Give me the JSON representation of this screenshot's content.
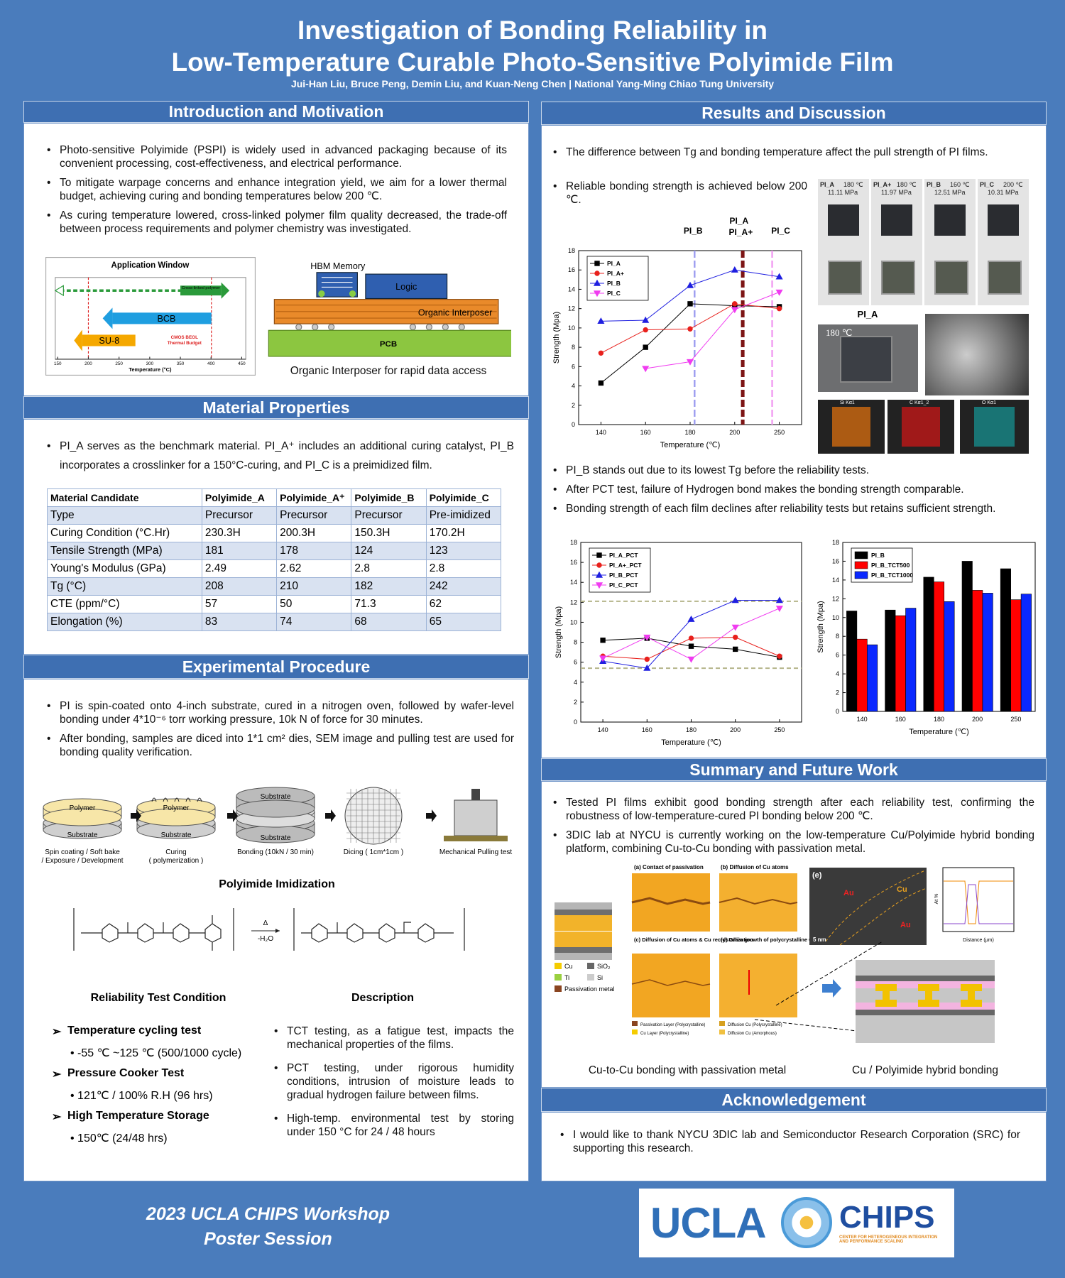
{
  "header": {
    "title_line1": "Investigation of Bonding Reliability in",
    "title_line2": "Low-Temperature Curable Photo-Sensitive Polyimide Film",
    "authors": "Jui-Han Liu, Bruce Peng, Demin Liu, and Kuan-Neng Chen | National Yang-Ming Chiao Tung University"
  },
  "introduction": {
    "heading": "Introduction and Motivation",
    "bullets": [
      "Photo-sensitive Polyimide (PSPI) is widely used in advanced packaging because of its convenient processing, cost-effectiveness, and electrical performance.",
      "To mitigate warpage concerns and enhance integration yield, we aim for a lower thermal budget, achieving curing and bonding temperatures below 200 ℃.",
      "As curing temperature lowered, cross-linked polymer film quality decreased, the trade-off between process requirements and polymer chemistry was investigated."
    ],
    "app_window": {
      "title": "Application Window",
      "cross_linked": "Cross-linked polymer",
      "bcb": "BCB",
      "su8": "SU-8",
      "cmos_line1": "CMOS BEOL",
      "cmos_line2": "Thermal Budget",
      "x_label": "Temperature (°C)",
      "xlim": [
        150,
        450
      ],
      "xticks": [
        150,
        200,
        250,
        300,
        350,
        400,
        450
      ]
    },
    "interposer": {
      "hbm": "HBM Memory",
      "logic": "Logic",
      "interposer": "Organic Interposer",
      "pcb": "PCB",
      "caption": "Organic Interposer for rapid data access"
    }
  },
  "materials": {
    "heading": "Material Properties",
    "bullet": "PI_A serves as the benchmark material. PI_A⁺ includes an additional curing catalyst, PI_B incorporates a crosslinker for a 150°C-curing, and PI_C is a preimidized film.",
    "table": {
      "header": [
        "Material Candidate",
        "Polyimide_A",
        "Polyimide_A⁺",
        "Polyimide_B",
        "Polyimide_C"
      ],
      "rows": [
        [
          "Type",
          "Precursor",
          "Precursor",
          "Precursor",
          "Pre-imidized"
        ],
        [
          "Curing Condition (°C.Hr)",
          "230.3H",
          "200.3H",
          "150.3H",
          "170.2H"
        ],
        [
          "Tensile Strength (MPa)",
          "181",
          "178",
          "124",
          "123"
        ],
        [
          "Young's Modulus (GPa)",
          "2.49",
          "2.62",
          "2.8",
          "2.8"
        ],
        [
          "Tg (°C)",
          "208",
          "210",
          "182",
          "242"
        ],
        [
          "CTE (ppm/°C)",
          "57",
          "50",
          "71.3",
          "62"
        ],
        [
          "Elongation (%)",
          "83",
          "74",
          "68",
          "65"
        ]
      ]
    }
  },
  "experimental": {
    "heading": "Experimental Procedure",
    "bullets": [
      "PI is spin-coated onto 4-inch substrate, cured in a nitrogen oven, followed by wafer-level bonding under 4*10⁻⁶ torr working pressure, 10k N of force for 30 minutes.",
      "After bonding, samples are diced into 1*1 cm² dies, SEM image and pulling test are used for bonding quality verification."
    ],
    "layers": {
      "polymer": "Polymer",
      "substrate": "Substrate"
    },
    "steps": [
      [
        "Spin coating / Soft bake",
        "/ Exposure / Development"
      ],
      [
        "Curing",
        "( polymerization )"
      ],
      [
        "Bonding (10kN / 30 min)"
      ],
      [
        "Dicing ( 1cm*1cm )"
      ],
      [
        "Mechanical Pulling test"
      ]
    ],
    "imidization": {
      "title": "Polyimide Imidization",
      "reagent_top": "Δ",
      "reagent_bottom": "-H₂O"
    },
    "reliability": {
      "col1": "Reliability Test Condition",
      "col2": "Description",
      "tests": [
        {
          "name": "Temperature cycling test",
          "condition": "-55 ℃ ~125 ℃  (500/1000 cycle)",
          "description": "TCT testing, as a fatigue test, impacts the mechanical properties of the films."
        },
        {
          "name": "Pressure Cooker Test",
          "condition": "121℃ / 100% R.H  (96 hrs)",
          "description": "PCT testing, under rigorous humidity conditions, intrusion of moisture leads to gradual hydrogen failure between films."
        },
        {
          "name": "High Temperature Storage",
          "condition": "150℃  (24/48 hrs)",
          "description": "High-temp. environmental test by storing under 150 °C for 24 / 48 hours"
        }
      ]
    }
  },
  "results": {
    "heading": "Results and Discussion",
    "bullets_top": [
      "The difference between Tg and bonding temperature affect the pull strength of PI films.",
      "Reliable bonding strength is achieved below 200 ℃."
    ],
    "photos": [
      {
        "label": "PI_A",
        "temp": "180 ℃",
        "strength": "11.11 MPa"
      },
      {
        "label": "PI_A+",
        "temp": "180 ℃",
        "strength": "11.97 MPa"
      },
      {
        "label": "PI_B",
        "temp": "160 ℃",
        "strength": "12.51 MPa"
      },
      {
        "label": "PI_C",
        "temp": "200 ℃",
        "strength": "10.31 MPa"
      }
    ],
    "sem": {
      "label": "PI_A",
      "temp": "180 ℃",
      "eds": [
        "Si Kα1",
        "C Kα1_2",
        "O Kα1"
      ]
    },
    "charts": [
      {
        "type": "line",
        "categories": [
          "140",
          "160",
          "180",
          "200",
          "250"
        ],
        "x_label": "Temperature (℃)",
        "y_label": "Strength (Mpa)",
        "ylim": [
          0,
          18
        ],
        "yticks": [
          0,
          2,
          4,
          6,
          8,
          10,
          12,
          14,
          16,
          18
        ],
        "legend": "upper left",
        "series": [
          {
            "name": "PI_A",
            "color": "#000000",
            "marker": "square",
            "values": [
              4.3,
              8.0,
              12.5,
              12.3,
              12.2
            ]
          },
          {
            "name": "PI_A+",
            "color": "#e8201c",
            "marker": "circle",
            "values": [
              7.4,
              9.8,
              9.9,
              12.5,
              12.0
            ]
          },
          {
            "name": "PI_B",
            "color": "#1f1fe0",
            "marker": "triangle-up",
            "values": [
              10.7,
              10.8,
              14.4,
              16.0,
              15.3
            ]
          },
          {
            "name": "PI_C",
            "color": "#f03cf0",
            "marker": "triangle-down",
            "values": [
              null,
              5.8,
              6.5,
              11.9,
              13.7
            ]
          }
        ],
        "tg_lines": [
          {
            "label": "PI_B",
            "value": 182,
            "color": "#9f9ff0"
          },
          {
            "label": "PI_A",
            "value": 208,
            "color": "#7a1010"
          },
          {
            "label": "PI_A+",
            "value": 210,
            "color": "#7a1010"
          },
          {
            "label": "PI_C",
            "value": 242,
            "color": "#f2a0f2"
          }
        ]
      },
      {
        "type": "line",
        "categories": [
          "140",
          "160",
          "180",
          "200",
          "250"
        ],
        "x_label": "Temperature (℃)",
        "y_label": "Strength (Mpa)",
        "ylim": [
          0,
          18
        ],
        "yticks": [
          0,
          2,
          4,
          6,
          8,
          10,
          12,
          14,
          16,
          18
        ],
        "legend": "upper left",
        "ref_lines": [
          12.1,
          5.4
        ],
        "ref_color": "#b5b58a",
        "series": [
          {
            "name": "PI_A_PCT",
            "color": "#000000",
            "marker": "square",
            "values": [
              8.2,
              8.4,
              7.6,
              7.3,
              6.5
            ]
          },
          {
            "name": "PI_A+_PCT",
            "color": "#e8201c",
            "marker": "circle",
            "values": [
              6.6,
              6.3,
              8.4,
              8.5,
              6.6
            ]
          },
          {
            "name": "PI_B_PCT",
            "color": "#1f1fe0",
            "marker": "triangle-up",
            "values": [
              6.1,
              5.4,
              10.3,
              12.2,
              12.2
            ]
          },
          {
            "name": "PI_C_PCT",
            "color": "#f03cf0",
            "marker": "triangle-down",
            "values": [
              6.4,
              8.5,
              6.3,
              9.5,
              11.4
            ]
          }
        ]
      },
      {
        "type": "bar",
        "categories": [
          "140",
          "160",
          "180",
          "200",
          "250"
        ],
        "x_label": "Temperature (℃)",
        "y_label": "Strength (Mpa)",
        "ylim": [
          0,
          18
        ],
        "yticks": [
          0,
          2,
          4,
          6,
          8,
          10,
          12,
          14,
          16,
          18
        ],
        "legend": "upper left",
        "series": [
          {
            "name": "PI_B",
            "color": "#000000",
            "values": [
              10.7,
              10.8,
              14.3,
              16.0,
              15.2
            ]
          },
          {
            "name": "PI_B_TCT500",
            "color": "#ff0000",
            "values": [
              7.7,
              10.2,
              13.8,
              12.9,
              11.9
            ]
          },
          {
            "name": "PI_B_TCT1000",
            "color": "#0a28ff",
            "values": [
              7.1,
              11.0,
              11.7,
              12.6,
              12.5
            ]
          }
        ]
      }
    ],
    "bullets_bottom": [
      "PI_B stands out due to its lowest Tg before the reliability tests.",
      "After PCT test, failure of Hydrogen bond makes the bonding strength comparable.",
      "Bonding strength of each film declines after reliability tests but retains sufficient strength."
    ]
  },
  "summary": {
    "heading": "Summary and Future Work",
    "bullets": [
      "Tested PI films exhibit good bonding strength after each reliability test, confirming the robustness of low-temperature-cured PI bonding below 200 ℃.",
      "3DIC lab at NYCU is currently working on the low-temperature Cu/Polyimide hybrid bonding platform, combining Cu-to-Cu bonding with passivation metal."
    ],
    "panels": [
      "(a) Contact of passivation",
      "(b) Diffusion of Cu atoms",
      "(c) Diffusion of Cu atoms & Cu recrystallization",
      "(d) Grain growth of polycrystalline Cu"
    ],
    "materials_legend": [
      "Cu",
      "SiO₂",
      "Ti",
      "Si",
      "Passivation metal"
    ],
    "layer_legend": [
      "Passivation Layer (Polycrystalline)",
      "Diffusion Cu (Polycrystalline)",
      "Cu Layer (Polycrystalline)",
      "Diffusion Cu (Amorphous)"
    ],
    "tem": {
      "label": "(e)",
      "au1": "Au",
      "cu": "Cu",
      "au2": "Au",
      "scale": "5 nm",
      "y_label": "At %",
      "x_label": "Distance (μm)"
    },
    "captions": [
      "Cu-to-Cu bonding with passivation metal",
      "Cu / Polyimide hybrid bonding"
    ]
  },
  "acknowledgement": {
    "heading": "Acknowledgement",
    "bullet": "I would like to thank NYCU 3DIC lab and Semiconductor Research Corporation (SRC) for supporting this research."
  },
  "footer": {
    "line1": "2023 UCLA CHIPS Workshop",
    "line2": "Poster Session",
    "logo_ucla": "UCLA",
    "logo_chips": "CHIPS",
    "logo_sub": "CENTER FOR HETEROGENEOUS INTEGRATION AND PERFORMANCE SCALING"
  }
}
